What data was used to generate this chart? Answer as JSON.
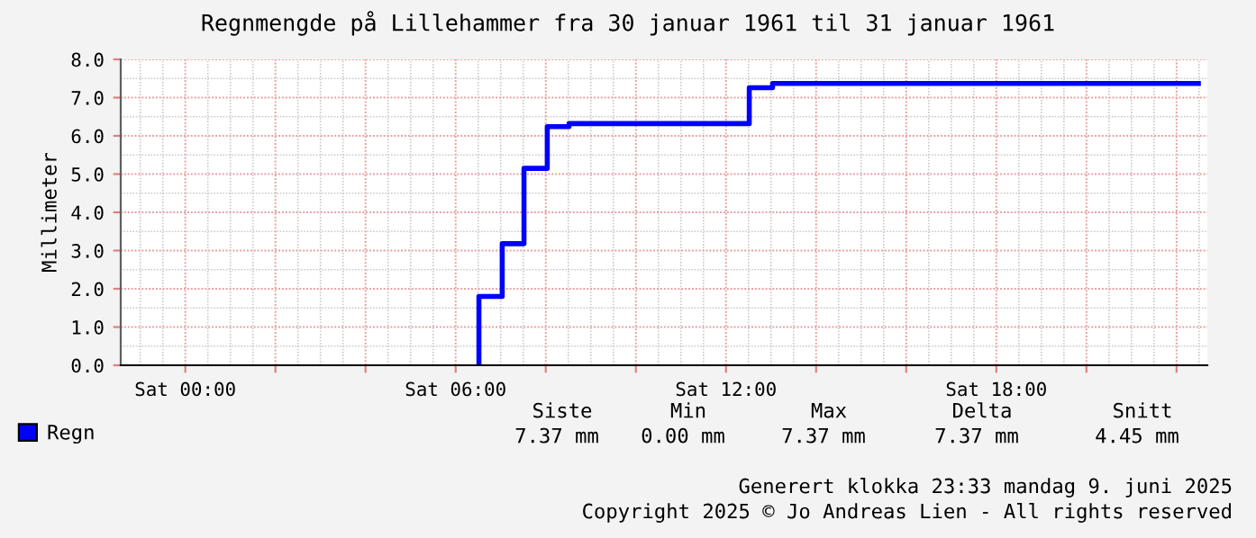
{
  "chart_data": {
    "type": "step",
    "title": "Regnmengde på Lillehammer fra 30 januar 1961 til 31 januar 1961",
    "ylabel": "Millimeter",
    "x": [
      "1961-01-31T06:31",
      "1961-01-31T06:31",
      "1961-01-31T07:02",
      "1961-01-31T07:31",
      "1961-01-31T08:02",
      "1961-01-31T08:31",
      "1961-01-31T12:31",
      "1961-01-31T13:02",
      "1961-01-31T22:29"
    ],
    "series": [
      {
        "name": "Regn",
        "color": "#0000ff",
        "values": [
          0,
          1.8,
          3.18,
          5.15,
          6.24,
          6.32,
          7.26,
          7.37,
          7.37
        ]
      }
    ],
    "xlim": [
      "1961-01-30T22:34",
      "1961-01-31T22:41"
    ],
    "xticks": [
      {
        "value": "1961-01-31T00:00",
        "label": "Sat 00:00"
      },
      {
        "value": "1961-01-31T02:00",
        "label": null
      },
      {
        "value": "1961-01-31T04:00",
        "label": null
      },
      {
        "value": "1961-01-31T06:00",
        "label": "Sat 06:00"
      },
      {
        "value": "1961-01-31T08:00",
        "label": null
      },
      {
        "value": "1961-01-31T10:00",
        "label": null
      },
      {
        "value": "1961-01-31T12:00",
        "label": "Sat 12:00"
      },
      {
        "value": "1961-01-31T14:00",
        "label": null
      },
      {
        "value": "1961-01-31T16:00",
        "label": null
      },
      {
        "value": "1961-01-31T18:00",
        "label": "Sat 18:00"
      },
      {
        "value": "1961-01-31T20:00",
        "label": null
      },
      {
        "value": "1961-01-31T22:00",
        "label": null
      }
    ],
    "ylim": [
      0,
      8
    ],
    "yticks": [
      {
        "value": 0,
        "label": "0.0"
      },
      {
        "value": 1,
        "label": "1.0"
      },
      {
        "value": 2,
        "label": "2.0"
      },
      {
        "value": 3,
        "label": "3.0"
      },
      {
        "value": 4,
        "label": "4.0"
      },
      {
        "value": 5,
        "label": "5.0"
      },
      {
        "value": 6,
        "label": "6.0"
      },
      {
        "value": 7,
        "label": "7.0"
      },
      {
        "value": 8,
        "label": "8.0"
      }
    ],
    "grid": true,
    "legend": "bottom left",
    "line_style": "solid",
    "marker": "none",
    "annotations": [
      "Siste",
      "Min",
      "Max",
      "Delta",
      "Snitt",
      "7.37 mm",
      "0.00 mm",
      "7.37 mm",
      "7.37 mm",
      "4.45 mm",
      "Generert klokka 23:33 mandag 9. juni 2025",
      "Copyright 2025 © Jo Andreas Lien - All rights reserved"
    ]
  }
}
